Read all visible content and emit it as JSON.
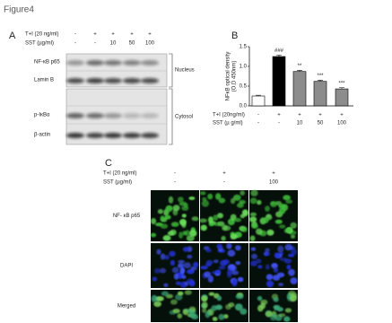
{
  "figure_title": "Figure4",
  "panel_a": {
    "label": "A",
    "rows": [
      {
        "label": "T+I (20 ng/ml)",
        "cells": [
          "-",
          "+",
          "+",
          "+",
          "+"
        ]
      },
      {
        "label": "SST (µg/ml)",
        "cells": [
          "-",
          "-",
          "10",
          "50",
          "100"
        ]
      }
    ],
    "blots": [
      "NF-κB p65",
      "Lamin B",
      "p-IκBα",
      "β-actin"
    ],
    "fractions": [
      "Nucleus",
      "Cytosol"
    ]
  },
  "panel_b": {
    "label": "B",
    "rows": [
      {
        "label": "T+I (20ng/ml)",
        "cells": [
          "-",
          "+",
          "+",
          "+",
          "+"
        ]
      },
      {
        "label": "SST (µ g/ml)",
        "cells": [
          "-",
          "-",
          "10",
          "50",
          "100"
        ]
      }
    ]
  },
  "chart_data": {
    "type": "bar",
    "ylabel": [
      "NFκB optical density",
      "(O.D 450nm)"
    ],
    "values": [
      0.25,
      1.25,
      0.87,
      0.62,
      0.43
    ],
    "errors": [
      0.02,
      0.04,
      0.03,
      0.03,
      0.03
    ],
    "colors": [
      "#ffffff",
      "#000000",
      "#8c8c8c",
      "#8c8c8c",
      "#8c8c8c"
    ],
    "annotations": [
      null,
      "###",
      "**",
      "***",
      "***"
    ],
    "ylim": [
      0,
      1.5
    ],
    "yticks": [
      {
        "value": 0,
        "label": "0.0"
      },
      {
        "value": 0.5,
        "label": "0.5"
      },
      {
        "value": 1,
        "label": "1.0"
      },
      {
        "value": 1.5,
        "label": "1.5"
      }
    ]
  },
  "panel_c": {
    "label": "C",
    "rows": [
      {
        "label": "T+I (20 ng/ml)",
        "cells": [
          "-",
          "+",
          "+"
        ]
      },
      {
        "label": "SST (µg/ml)",
        "cells": [
          "-",
          "-",
          "100"
        ]
      }
    ],
    "stains": [
      "NF- κB p65",
      "DAPI",
      "Merged"
    ]
  }
}
